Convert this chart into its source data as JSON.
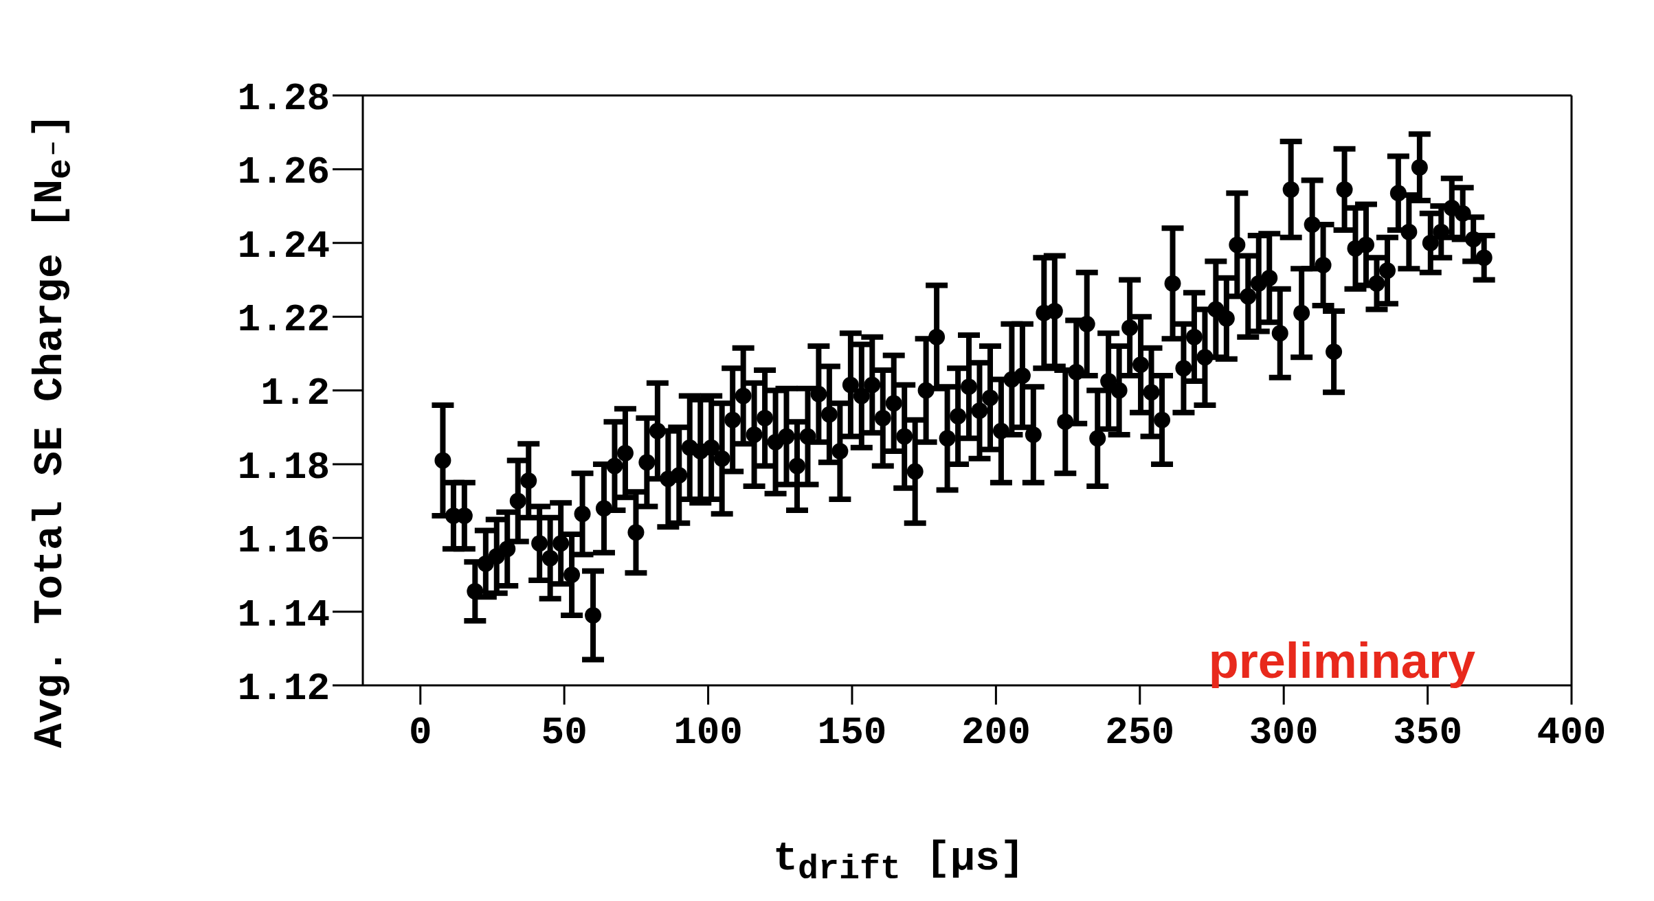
{
  "chart_data": {
    "type": "scatter",
    "xlabel": "t$_{drift}$ [μs]",
    "ylabel": "Avg. Total SE Charge [N$_{e⁻}$]",
    "annotations": [
      "preliminary"
    ],
    "x": [
      7.8,
      11.5,
      15.3,
      19.0,
      22.7,
      26.5,
      30.2,
      33.9,
      37.6,
      41.4,
      45.1,
      48.8,
      52.6,
      56.3,
      60.0,
      63.8,
      67.5,
      71.2,
      74.9,
      78.7,
      82.4,
      86.1,
      89.9,
      93.6,
      97.3,
      101.1,
      104.8,
      108.5,
      112.2,
      116.0,
      119.7,
      123.4,
      127.2,
      130.9,
      134.6,
      138.4,
      142.1,
      145.8,
      149.5,
      153.3,
      157.0,
      160.7,
      164.5,
      168.2,
      171.9,
      175.7,
      179.4,
      183.1,
      186.8,
      190.6,
      194.3,
      198.0,
      201.8,
      205.5,
      209.2,
      213.0,
      216.7,
      220.4,
      224.1,
      227.9,
      231.6,
      235.3,
      239.1,
      242.8,
      246.5,
      250.3,
      254.0,
      257.7,
      261.4,
      265.2,
      268.9,
      272.6,
      276.4,
      280.1,
      283.8,
      287.6,
      291.3,
      295.0,
      298.7,
      302.5,
      306.2,
      309.9,
      313.7,
      317.4,
      321.1,
      324.9,
      328.6,
      332.3,
      336.0,
      339.8,
      343.5,
      347.2,
      351.0,
      354.7,
      358.4,
      362.2,
      365.9,
      369.6
    ],
    "values": [
      1.181,
      1.166,
      1.166,
      1.1455,
      1.153,
      1.155,
      1.157,
      1.17,
      1.1755,
      1.1585,
      1.1545,
      1.1585,
      1.15,
      1.1665,
      1.139,
      1.168,
      1.1795,
      1.183,
      1.1615,
      1.1805,
      1.189,
      1.176,
      1.177,
      1.1845,
      1.1835,
      1.1845,
      1.1815,
      1.192,
      1.1985,
      1.188,
      1.1925,
      1.186,
      1.1875,
      1.1795,
      1.1875,
      1.199,
      1.1935,
      1.1835,
      1.2015,
      1.1985,
      1.2015,
      1.1925,
      1.1965,
      1.1875,
      1.178,
      1.2,
      1.2145,
      1.187,
      1.193,
      1.201,
      1.1945,
      1.198,
      1.189,
      1.203,
      1.204,
      1.188,
      1.221,
      1.2215,
      1.1915,
      1.205,
      1.218,
      1.187,
      1.2025,
      1.2,
      1.217,
      1.207,
      1.1995,
      1.192,
      1.229,
      1.206,
      1.2145,
      1.209,
      1.222,
      1.2195,
      1.2395,
      1.2255,
      1.229,
      1.2305,
      1.2155,
      1.2545,
      1.221,
      1.245,
      1.234,
      1.2105,
      1.2545,
      1.2385,
      1.2395,
      1.229,
      1.2325,
      1.2535,
      1.243,
      1.2605,
      1.24,
      1.243,
      1.2495,
      1.248,
      1.241,
      1.236
    ],
    "errors": [
      0.015,
      0.009,
      0.009,
      0.008,
      0.009,
      0.01,
      0.01,
      0.011,
      0.01,
      0.01,
      0.011,
      0.011,
      0.011,
      0.011,
      0.012,
      0.012,
      0.012,
      0.012,
      0.011,
      0.012,
      0.013,
      0.013,
      0.013,
      0.014,
      0.014,
      0.014,
      0.015,
      0.014,
      0.013,
      0.014,
      0.013,
      0.014,
      0.013,
      0.012,
      0.013,
      0.013,
      0.013,
      0.013,
      0.014,
      0.014,
      0.013,
      0.013,
      0.013,
      0.014,
      0.014,
      0.014,
      0.014,
      0.014,
      0.013,
      0.014,
      0.013,
      0.014,
      0.014,
      0.015,
      0.014,
      0.013,
      0.015,
      0.015,
      0.014,
      0.014,
      0.014,
      0.013,
      0.013,
      0.012,
      0.013,
      0.013,
      0.012,
      0.012,
      0.015,
      0.012,
      0.012,
      0.013,
      0.013,
      0.011,
      0.014,
      0.011,
      0.013,
      0.012,
      0.012,
      0.013,
      0.012,
      0.012,
      0.011,
      0.011,
      0.011,
      0.011,
      0.011,
      0.007,
      0.009,
      0.01,
      0.01,
      0.009,
      0.008,
      0.007,
      0.008,
      0.007,
      0.006,
      0.006
    ],
    "color": "#000000",
    "marker": "circle",
    "xlim": [
      -20,
      400
    ],
    "xticks": [
      0,
      50,
      100,
      150,
      200,
      250,
      300,
      350,
      400
    ],
    "ylim": [
      1.12,
      1.28
    ],
    "yticks": [
      1.12,
      {
        "value": 1.14,
        "label": "1.14"
      },
      {
        "value": 1.16,
        "label": "1.16"
      },
      {
        "value": 1.18,
        "label": "1.18"
      },
      {
        "value": 1.2,
        "label": "1.2"
      },
      {
        "value": 1.22,
        "label": "1.22"
      },
      {
        "value": 1.24,
        "label": "1.24"
      },
      {
        "value": 1.26,
        "label": "1.26"
      },
      {
        "value": 1.28,
        "label": "1.28"
      }
    ]
  }
}
